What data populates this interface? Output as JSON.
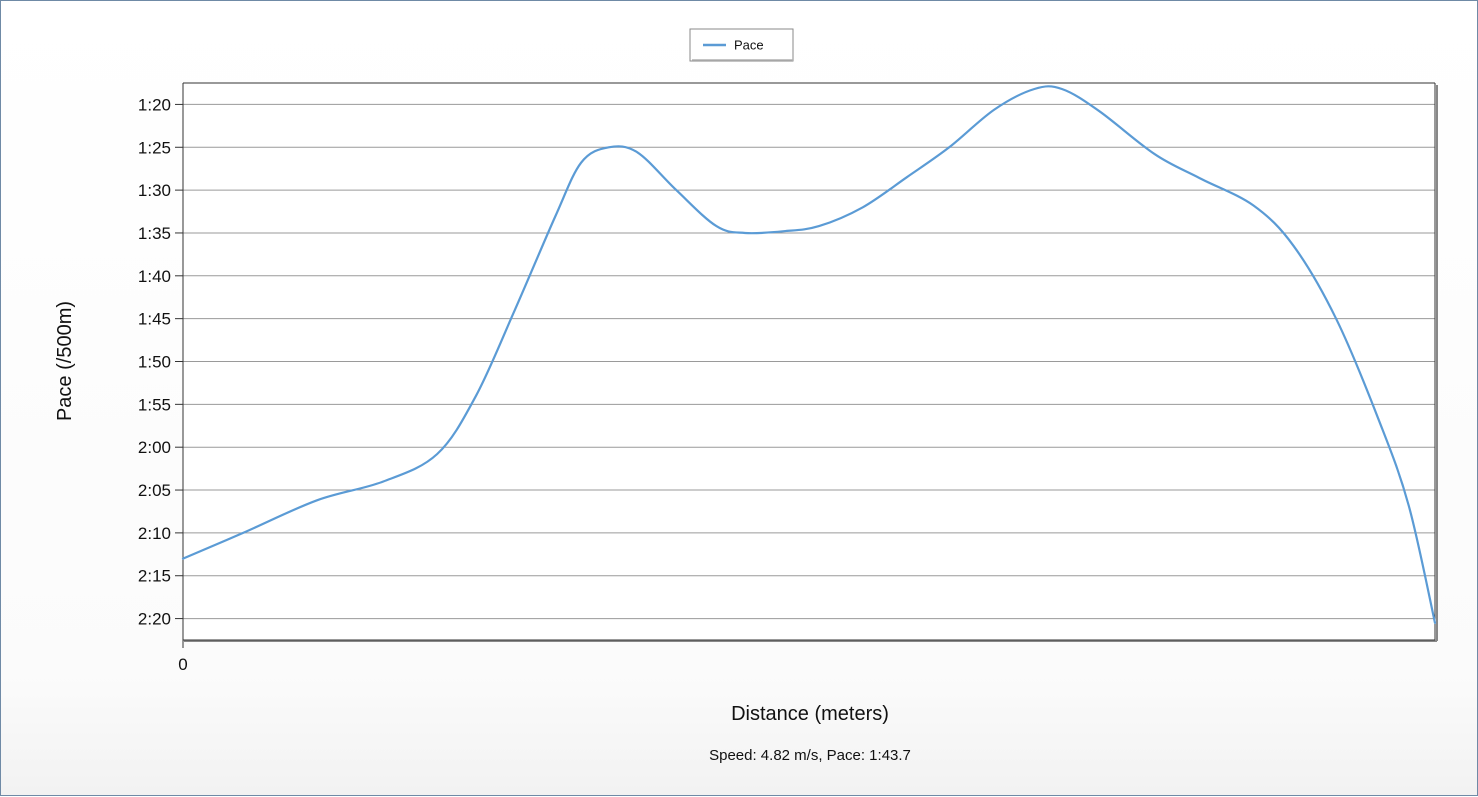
{
  "chart_data": {
    "type": "line",
    "title": "",
    "xlabel": "Distance (meters)",
    "ylabel": "Pace (/500m)",
    "x_tick_labels": [
      "0"
    ],
    "y_tick_labels": [
      "1:20",
      "1:25",
      "1:30",
      "1:35",
      "1:40",
      "1:45",
      "1:50",
      "1:55",
      "2:00",
      "2:05",
      "2:10",
      "2:15",
      "2:20"
    ],
    "y_ticks_seconds": [
      80,
      85,
      90,
      95,
      100,
      105,
      110,
      115,
      120,
      125,
      130,
      135,
      140
    ],
    "y_range_seconds": [
      77.5,
      142.5
    ],
    "y_inverted": true,
    "x_range_fraction": [
      0,
      1
    ],
    "grid": "horizontal",
    "legend_position": "top-center",
    "series": [
      {
        "name": "Pace",
        "color": "#5b9bd5",
        "points": [
          [
            0.0,
            133.0
          ],
          [
            0.048,
            130.0
          ],
          [
            0.107,
            126.2
          ],
          [
            0.16,
            124.0
          ],
          [
            0.203,
            120.8
          ],
          [
            0.234,
            114.0
          ],
          [
            0.265,
            104.0
          ],
          [
            0.297,
            93.2
          ],
          [
            0.318,
            86.8
          ],
          [
            0.34,
            85.0
          ],
          [
            0.363,
            85.6
          ],
          [
            0.394,
            90.0
          ],
          [
            0.426,
            94.2
          ],
          [
            0.449,
            95.0
          ],
          [
            0.48,
            94.8
          ],
          [
            0.508,
            94.2
          ],
          [
            0.543,
            92.0
          ],
          [
            0.578,
            88.5
          ],
          [
            0.612,
            85.0
          ],
          [
            0.648,
            80.6
          ],
          [
            0.68,
            78.2
          ],
          [
            0.702,
            78.2
          ],
          [
            0.732,
            80.8
          ],
          [
            0.776,
            85.8
          ],
          [
            0.812,
            88.6
          ],
          [
            0.855,
            91.8
          ],
          [
            0.887,
            96.5
          ],
          [
            0.921,
            105.0
          ],
          [
            0.955,
            116.8
          ],
          [
            0.979,
            126.8
          ],
          [
            1.0,
            140.5
          ]
        ]
      }
    ]
  },
  "footer": {
    "speed_text": "Speed: 4.82 m/s, Pace: 1:43.7"
  }
}
